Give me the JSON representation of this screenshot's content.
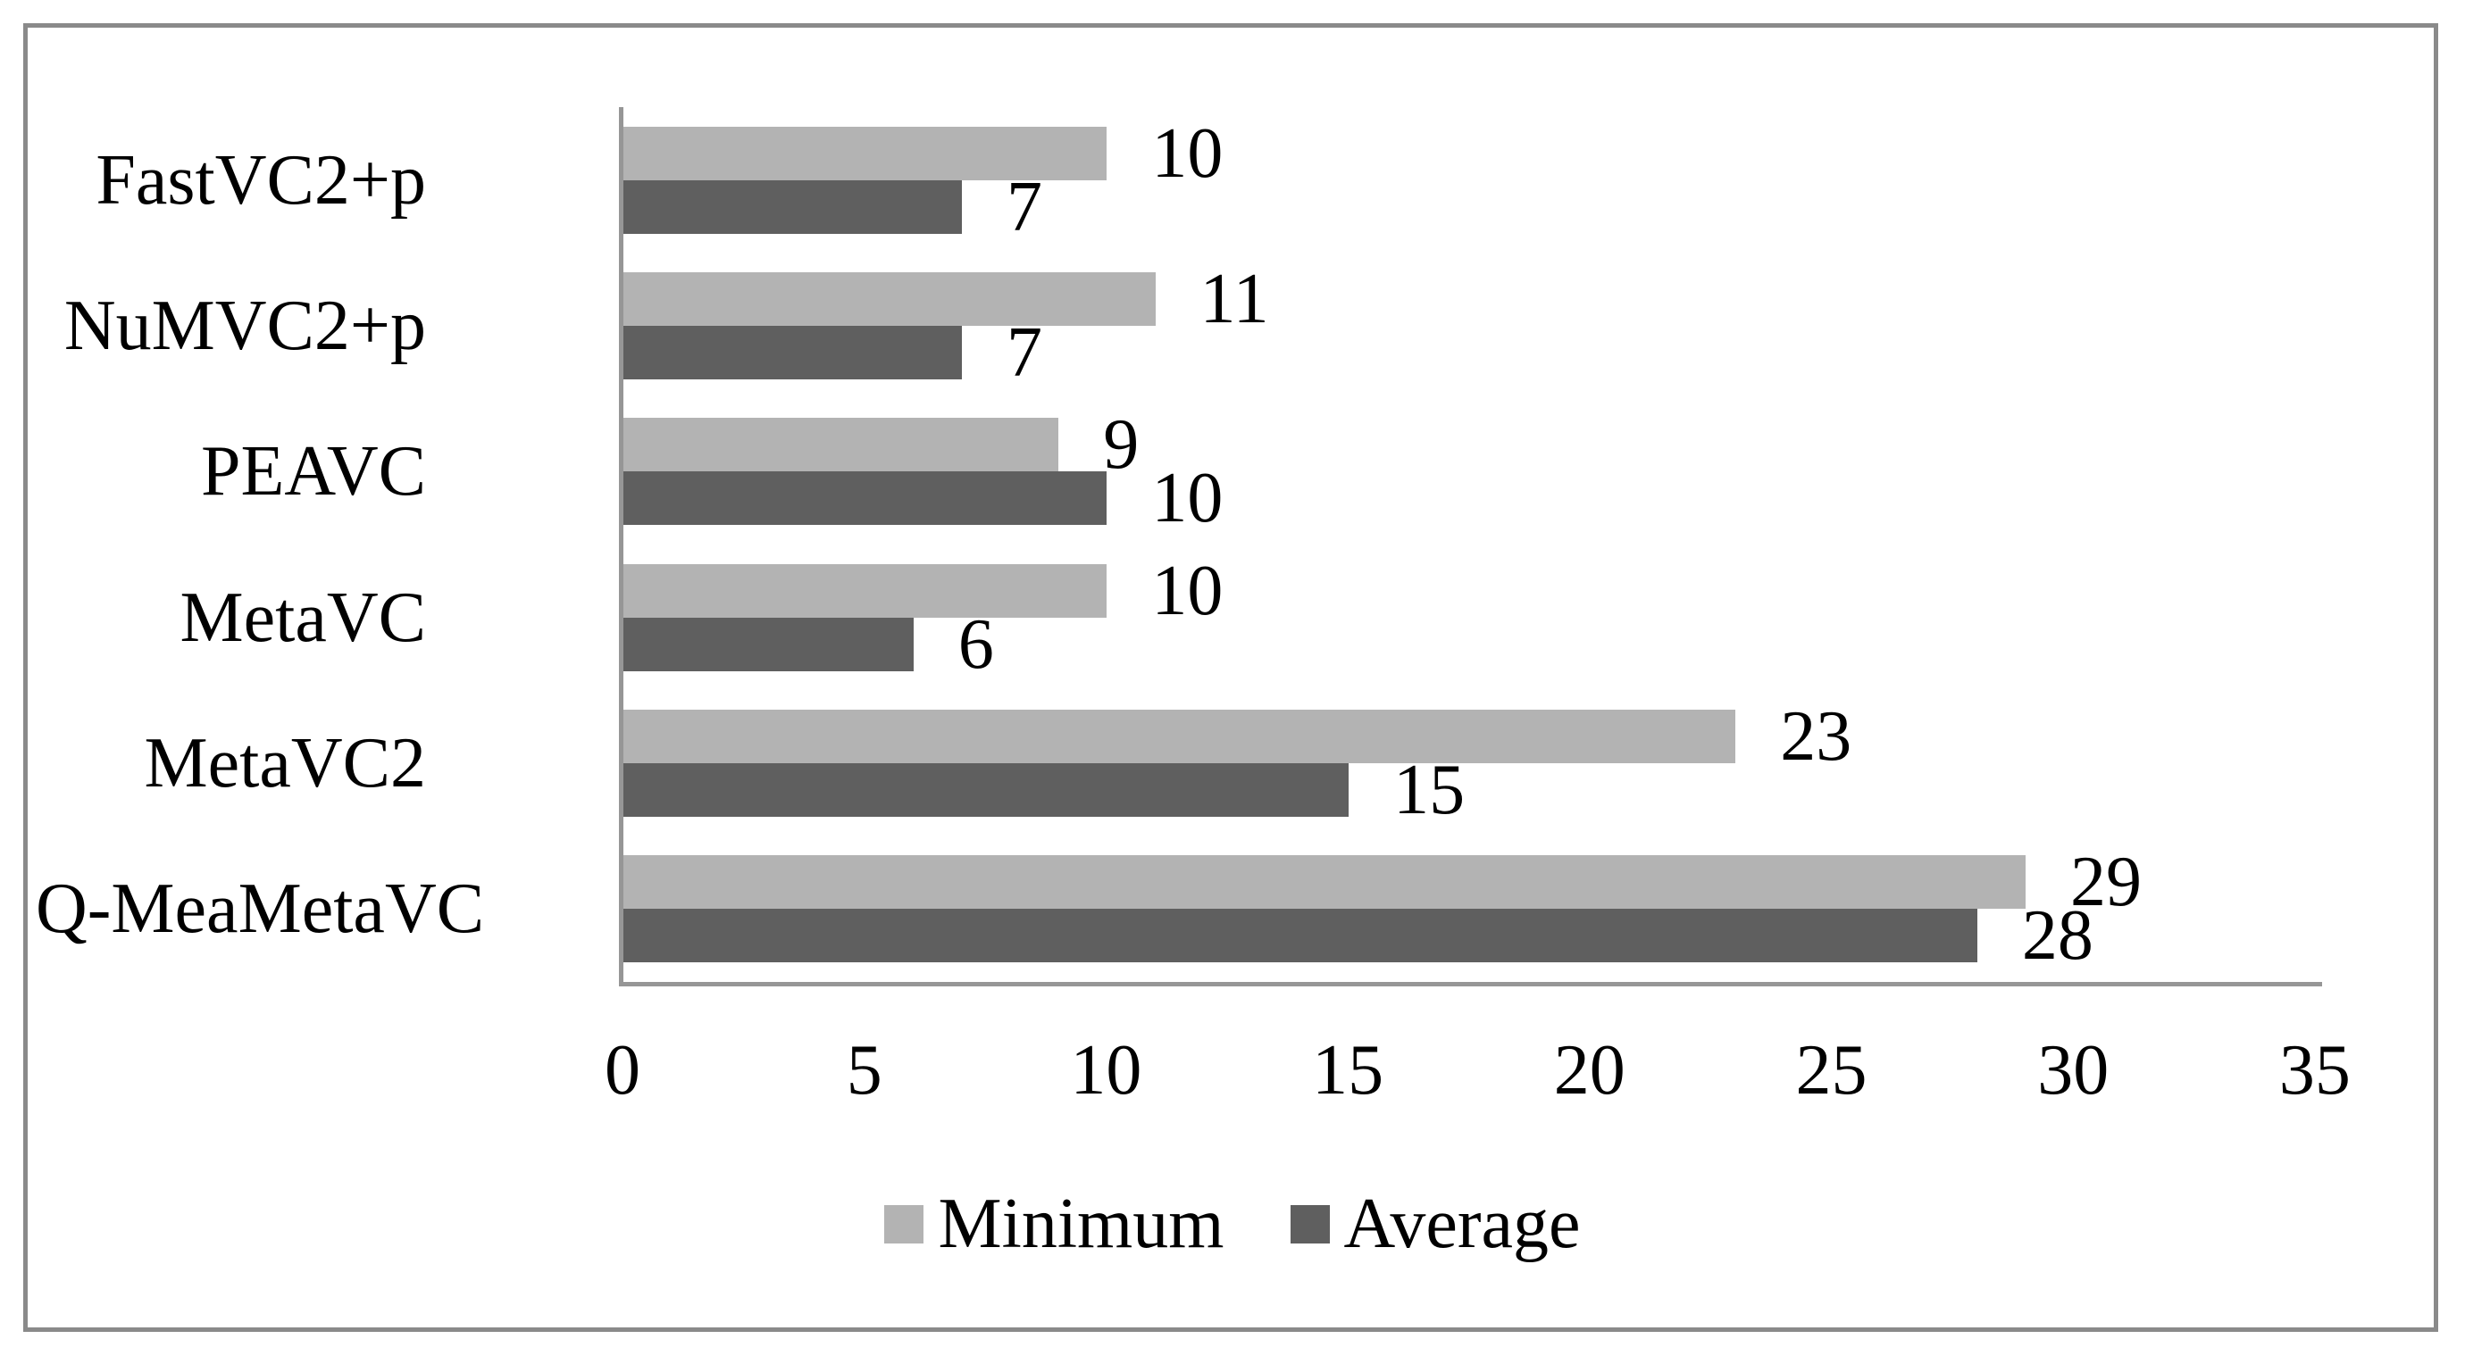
{
  "chart_data": {
    "type": "bar",
    "orientation": "horizontal",
    "title": "",
    "xlabel": "",
    "ylabel": "",
    "categories_order": "top-to-bottom",
    "categories": [
      "FastVC2+p",
      "NuMVC2+p",
      "PEAVC",
      "MetaVC",
      "MetaVC2",
      "Q-MeaMetaVC"
    ],
    "series": [
      {
        "name": "Minimum",
        "color": "#b3b3b3",
        "values": [
          10,
          11,
          9,
          10,
          23,
          29
        ]
      },
      {
        "name": "Average",
        "color": "#5f5f5f",
        "values": [
          7,
          7,
          10,
          6,
          15,
          28
        ]
      }
    ],
    "data_labels_shown": true,
    "x_ticks": [
      0,
      5,
      10,
      15,
      20,
      25,
      30,
      35
    ],
    "xlim": [
      0,
      35
    ],
    "grid": false,
    "legend_position": "bottom"
  },
  "styles": {
    "background_color": "#ffffff",
    "frame_border_color": "#8a8a8a",
    "axis_line_color": "#969696",
    "text_color": "#000000",
    "minimum_bar_color": "#b3b3b3",
    "average_bar_color": "#5f5f5f"
  }
}
